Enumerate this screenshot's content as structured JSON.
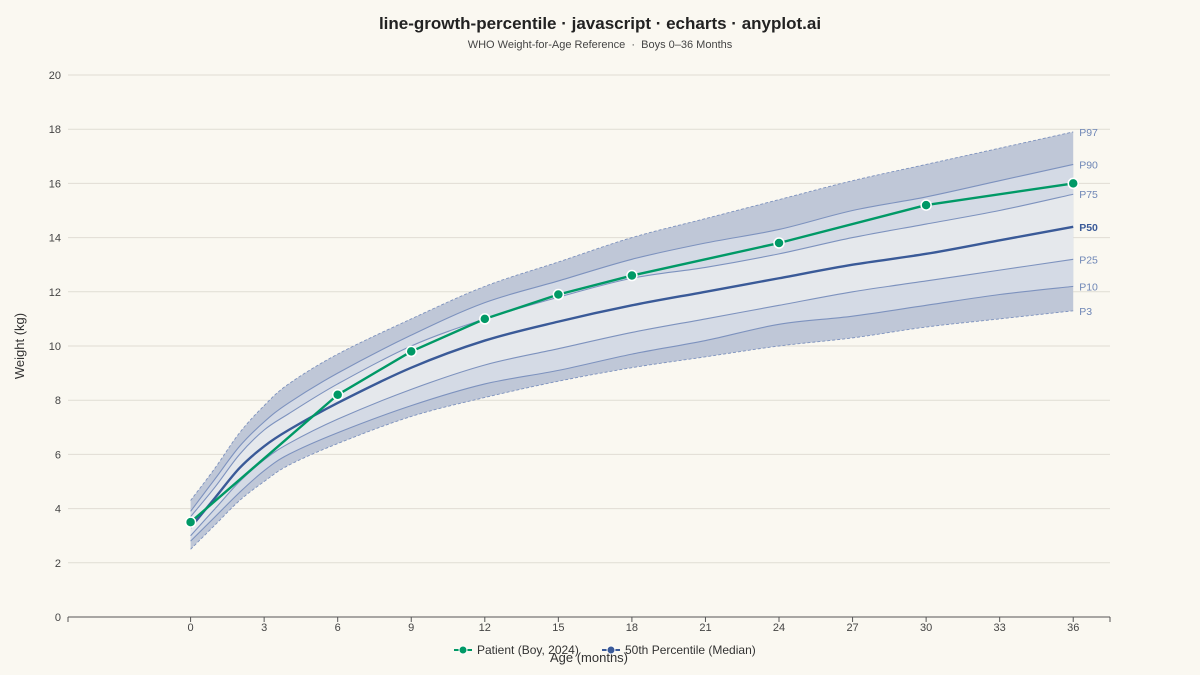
{
  "chart_data": {
    "type": "line",
    "title": "line-growth-percentile · javascript · echarts · anyplot.ai",
    "subtitle": "WHO Weight-for-Age Reference  ·  Boys 0–36 Months",
    "xlabel": "Age (months)",
    "ylabel": "Weight (kg)",
    "xlim": [
      -5,
      37.5
    ],
    "ylim": [
      0,
      20
    ],
    "xticks": [
      0,
      3,
      6,
      9,
      12,
      15,
      18,
      21,
      24,
      27,
      30,
      33,
      36
    ],
    "yticks": [
      0,
      2,
      4,
      6,
      8,
      10,
      12,
      14,
      16,
      18,
      20
    ],
    "grid": "horizontal",
    "legend_position": "bottom",
    "x": [
      0,
      1,
      2,
      3,
      4,
      6,
      9,
      12,
      15,
      18,
      21,
      24,
      27,
      30,
      33,
      36
    ],
    "percentiles": [
      {
        "name": "P3",
        "values": [
          2.5,
          3.4,
          4.3,
          5.0,
          5.6,
          6.4,
          7.4,
          8.1,
          8.7,
          9.2,
          9.6,
          10.0,
          10.3,
          10.7,
          11.0,
          11.3
        ]
      },
      {
        "name": "P10",
        "values": [
          2.8,
          3.7,
          4.6,
          5.4,
          6.0,
          6.8,
          7.8,
          8.6,
          9.1,
          9.7,
          10.2,
          10.8,
          11.1,
          11.5,
          11.9,
          12.2
        ]
      },
      {
        "name": "P25",
        "values": [
          3.0,
          4.0,
          5.0,
          5.8,
          6.4,
          7.3,
          8.4,
          9.3,
          9.9,
          10.5,
          11.0,
          11.5,
          12.0,
          12.4,
          12.8,
          13.2
        ]
      },
      {
        "name": "P50",
        "values": [
          3.3,
          4.4,
          5.5,
          6.3,
          6.9,
          7.9,
          9.2,
          10.2,
          10.9,
          11.5,
          12.0,
          12.5,
          13.0,
          13.4,
          13.9,
          14.4
        ]
      },
      {
        "name": "P75",
        "values": [
          3.7,
          4.8,
          6.0,
          6.9,
          7.5,
          8.6,
          10.0,
          11.0,
          11.8,
          12.5,
          12.9,
          13.4,
          14.0,
          14.5,
          15.0,
          15.6
        ]
      },
      {
        "name": "P90",
        "values": [
          3.9,
          5.1,
          6.3,
          7.2,
          7.9,
          9.0,
          10.4,
          11.6,
          12.4,
          13.2,
          13.8,
          14.3,
          15.0,
          15.5,
          16.1,
          16.7
        ]
      },
      {
        "name": "P97",
        "values": [
          4.3,
          5.5,
          6.8,
          7.8,
          8.6,
          9.7,
          11.0,
          12.2,
          13.1,
          14.0,
          14.7,
          15.4,
          16.1,
          16.7,
          17.3,
          17.9
        ]
      }
    ],
    "series": [
      {
        "name": "Patient (Boy, 2024)",
        "x": [
          0,
          6,
          9,
          12,
          15,
          18,
          24,
          30,
          36
        ],
        "values": [
          3.5,
          8.2,
          9.8,
          11.0,
          11.9,
          12.6,
          13.8,
          15.2,
          16.0
        ],
        "color": "#009966"
      },
      {
        "name": "50th Percentile (Median)",
        "values": [
          3.3,
          4.4,
          5.5,
          6.3,
          6.9,
          7.9,
          9.2,
          10.2,
          10.9,
          11.5,
          12.0,
          12.5,
          13.0,
          13.4,
          13.9,
          14.4
        ],
        "color": "#3A5A98"
      }
    ],
    "colors": {
      "background": "#FAF8F1",
      "outer_band": "#BFC7D7",
      "mid_band": "#D4DAE5",
      "inner_band": "#E5E8EC",
      "percentile_line": "#7D92BE",
      "percentile_label": "#6E86B6",
      "grid": "#E0DDD4",
      "axis": "#555555",
      "text": "#222222"
    }
  }
}
